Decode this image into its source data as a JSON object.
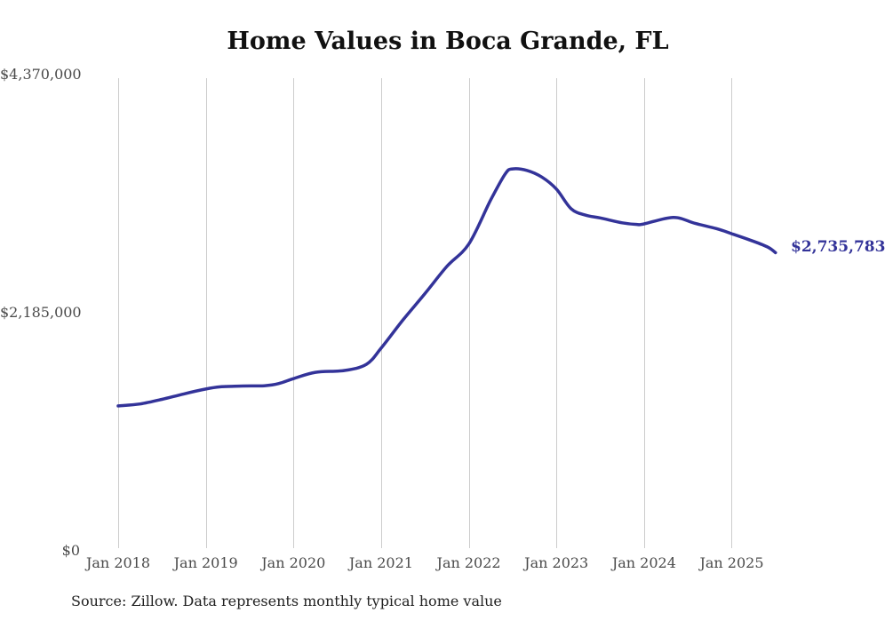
{
  "title": "Home Values in Boca Grande, FL",
  "source_note": "Source: Zillow. Data represents monthly typical home value",
  "end_label": "$2,735,783",
  "chart_data": {
    "type": "line",
    "title": "Home Values in Boca Grande, FL",
    "xlabel": "",
    "ylabel": "",
    "ylim": [
      0,
      4370000
    ],
    "grid": "vertical-only",
    "legend": "none",
    "line_color": "#333399",
    "gridline_color": "#cccccc",
    "tick_label_color": "#4a4a4a",
    "y_ticks": [
      {
        "value": 0,
        "label": "$0"
      },
      {
        "value": 2185000,
        "label": "$2,185,000"
      },
      {
        "value": 4370000,
        "label": "$4,370,000"
      }
    ],
    "x_ticks": [
      {
        "month": "2018-01",
        "label": "Jan 2018"
      },
      {
        "month": "2019-01",
        "label": "Jan 2019"
      },
      {
        "month": "2020-01",
        "label": "Jan 2020"
      },
      {
        "month": "2021-01",
        "label": "Jan 2021"
      },
      {
        "month": "2022-01",
        "label": "Jan 2022"
      },
      {
        "month": "2023-01",
        "label": "Jan 2023"
      },
      {
        "month": "2024-01",
        "label": "Jan 2024"
      },
      {
        "month": "2025-01",
        "label": "Jan 2025"
      }
    ],
    "series": [
      {
        "name": "Monthly typical home value",
        "points": [
          [
            "2018-01",
            1330000
          ],
          [
            "2018-04",
            1348000
          ],
          [
            "2018-07",
            1390000
          ],
          [
            "2018-10",
            1440000
          ],
          [
            "2019-01",
            1485000
          ],
          [
            "2019-03",
            1505000
          ],
          [
            "2019-06",
            1512000
          ],
          [
            "2019-09",
            1515000
          ],
          [
            "2019-11",
            1535000
          ],
          [
            "2020-01",
            1580000
          ],
          [
            "2020-04",
            1638000
          ],
          [
            "2020-08",
            1655000
          ],
          [
            "2020-11",
            1712000
          ],
          [
            "2021-01",
            1860000
          ],
          [
            "2021-04",
            2120000
          ],
          [
            "2021-07",
            2360000
          ],
          [
            "2021-10",
            2610000
          ],
          [
            "2022-01",
            2815000
          ],
          [
            "2022-04",
            3220000
          ],
          [
            "2022-06",
            3460000
          ],
          [
            "2022-07",
            3505000
          ],
          [
            "2022-09",
            3490000
          ],
          [
            "2022-11",
            3430000
          ],
          [
            "2023-01",
            3320000
          ],
          [
            "2023-03",
            3140000
          ],
          [
            "2023-05",
            3080000
          ],
          [
            "2023-07",
            3055000
          ],
          [
            "2023-10",
            3010000
          ],
          [
            "2023-12",
            2995000
          ],
          [
            "2024-01",
            3000000
          ],
          [
            "2024-05",
            3060000
          ],
          [
            "2024-08",
            3005000
          ],
          [
            "2024-11",
            2955000
          ],
          [
            "2025-01",
            2910000
          ],
          [
            "2025-04",
            2840000
          ],
          [
            "2025-06",
            2785000
          ],
          [
            "2025-07",
            2735783
          ]
        ]
      }
    ],
    "last_point": {
      "month": "2025-07",
      "value": 2735783,
      "label": "$2,735,783"
    }
  }
}
